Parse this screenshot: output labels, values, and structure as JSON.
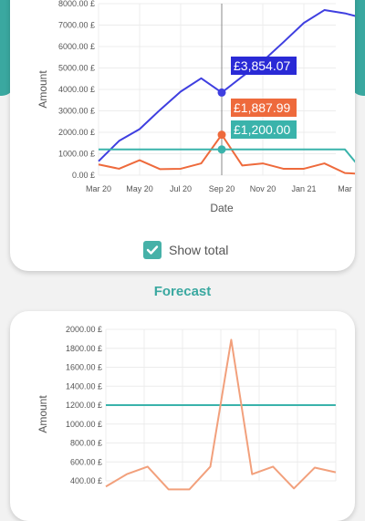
{
  "colors": {
    "accent": "#3aa8a0",
    "total": "#3f3fe0",
    "expense": "#ee6a3c",
    "budget": "#3ab3ab",
    "forecast": "#f2a07c"
  },
  "chart1": {
    "ylabel": "Amount",
    "xlabel": "Date",
    "y_ticks": [
      "0.00 £",
      "1000.00 £",
      "2000.00 £",
      "3000.00 £",
      "4000.00 £",
      "5000.00 £",
      "6000.00 £",
      "7000.00 £",
      "8000.00 £"
    ],
    "x_ticks": [
      "Mar 20",
      "May 20",
      "Jul 20",
      "Sep 20",
      "Nov 20",
      "Jan 21",
      "Mar"
    ],
    "tooltips": {
      "total": "£3,854.07",
      "expense": "£1,887.99",
      "budget": "£1,200.00"
    }
  },
  "show_total": {
    "label": "Show total",
    "checked": true,
    "icon": "check-icon"
  },
  "forecast": {
    "title": "Forecast",
    "ylabel": "Amount",
    "y_ticks": [
      "400.00 £",
      "600.00 £",
      "800.00 £",
      "1000.00 £",
      "1200.00 £",
      "1400.00 £",
      "1600.00 £",
      "1800.00 £",
      "2000.00 £"
    ]
  },
  "chart_data": [
    {
      "type": "line",
      "xlabel": "Date",
      "ylabel": "Amount",
      "ylim": [
        0,
        8000
      ],
      "x_ticks": [
        "Mar 20",
        "May 20",
        "Jul 20",
        "Sep 20",
        "Nov 20",
        "Jan 21",
        "Mar"
      ],
      "grid": true,
      "series": [
        {
          "color": "#3f3fe0",
          "x": [
            0,
            1,
            2,
            3,
            4,
            5,
            6,
            7,
            8,
            9,
            10,
            11,
            12,
            13
          ],
          "values": [
            650,
            1600,
            2150,
            3050,
            3900,
            4520,
            3854,
            4600,
            5320,
            6200,
            7100,
            7700,
            7550,
            7300
          ]
        },
        {
          "color": "#ee6a3c",
          "x": [
            0,
            1,
            2,
            3,
            4,
            5,
            6,
            7,
            8,
            9,
            10,
            11,
            12,
            13
          ],
          "values": [
            500,
            300,
            700,
            280,
            300,
            550,
            1888,
            450,
            550,
            300,
            300,
            550,
            100,
            50
          ]
        },
        {
          "color": "#3ab3ab",
          "x": [
            0,
            1,
            2,
            3,
            4,
            5,
            6,
            7,
            8,
            9,
            10,
            11,
            12,
            13
          ],
          "values": [
            1200,
            1200,
            1200,
            1200,
            1200,
            1200,
            1200,
            1200,
            1200,
            1200,
            1200,
            1200,
            1200,
            50
          ]
        }
      ],
      "highlight_index": 6
    },
    {
      "type": "line",
      "ylabel": "Amount",
      "ylim": [
        400,
        2000
      ],
      "grid": true,
      "series": [
        {
          "color": "#3ab3ab",
          "x": [
            0,
            1,
            2,
            3,
            4,
            5,
            6,
            7,
            8,
            9,
            10,
            11
          ],
          "values": [
            1200,
            1200,
            1200,
            1200,
            1200,
            1200,
            1200,
            1200,
            1200,
            1200,
            1200,
            1200
          ]
        },
        {
          "color": "#f2a07c",
          "x": [
            0,
            1,
            2,
            3,
            4,
            5,
            6,
            7,
            8,
            9,
            10,
            11
          ],
          "values": [
            340,
            470,
            550,
            310,
            310,
            550,
            1890,
            470,
            550,
            320,
            540,
            490
          ]
        }
      ]
    }
  ]
}
